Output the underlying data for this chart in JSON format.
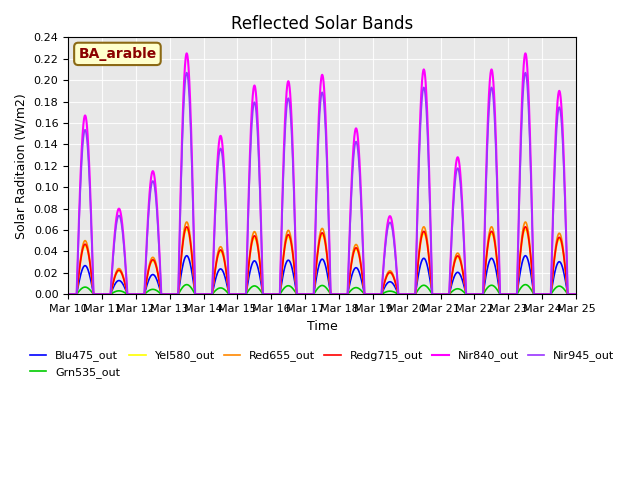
{
  "title": "Reflected Solar Bands",
  "xlabel": "Time",
  "ylabel": "Solar Raditaion (W/m2)",
  "annotation": "BA_arable",
  "annotation_color": "#8B0000",
  "x_tick_labels": [
    "Mar 10",
    "Mar 11",
    "Mar 12",
    "Mar 13",
    "Mar 14",
    "Mar 15",
    "Mar 16",
    "Mar 17",
    "Mar 18",
    "Mar 19",
    "Mar 20",
    "Mar 21",
    "Mar 22",
    "Mar 23",
    "Mar 24",
    "Mar 25"
  ],
  "ylim": [
    0,
    0.24
  ],
  "yticks": [
    0.0,
    0.02,
    0.04,
    0.06,
    0.08,
    0.1,
    0.12,
    0.14,
    0.16,
    0.18,
    0.2,
    0.22,
    0.24
  ],
  "series": [
    {
      "name": "Blu475_out",
      "color": "#0000ff",
      "linewidth": 1.2,
      "ratio": 0.16
    },
    {
      "name": "Grn535_out",
      "color": "#00cc00",
      "linewidth": 1.2,
      "ratio": 0.04
    },
    {
      "name": "Yel580_out",
      "color": "#ffff00",
      "linewidth": 1.2,
      "ratio": 0.27
    },
    {
      "name": "Red655_out",
      "color": "#ff8800",
      "linewidth": 1.2,
      "ratio": 0.3
    },
    {
      "name": "Redg715_out",
      "color": "#ff0000",
      "linewidth": 1.2,
      "ratio": 0.28
    },
    {
      "name": "Nir840_out",
      "color": "#ff00ff",
      "linewidth": 1.5,
      "ratio": 1.0
    },
    {
      "name": "Nir945_out",
      "color": "#9933ff",
      "linewidth": 1.2,
      "ratio": 0.92
    }
  ],
  "axes_bg_color": "#e8e8e8",
  "nir840_peaks": [
    0.167,
    0.08,
    0.115,
    0.225,
    0.148,
    0.195,
    0.199,
    0.205,
    0.155,
    0.073,
    0.21,
    0.128,
    0.21,
    0.225,
    0.19
  ],
  "day_start": 0.25,
  "day_end": 0.75
}
